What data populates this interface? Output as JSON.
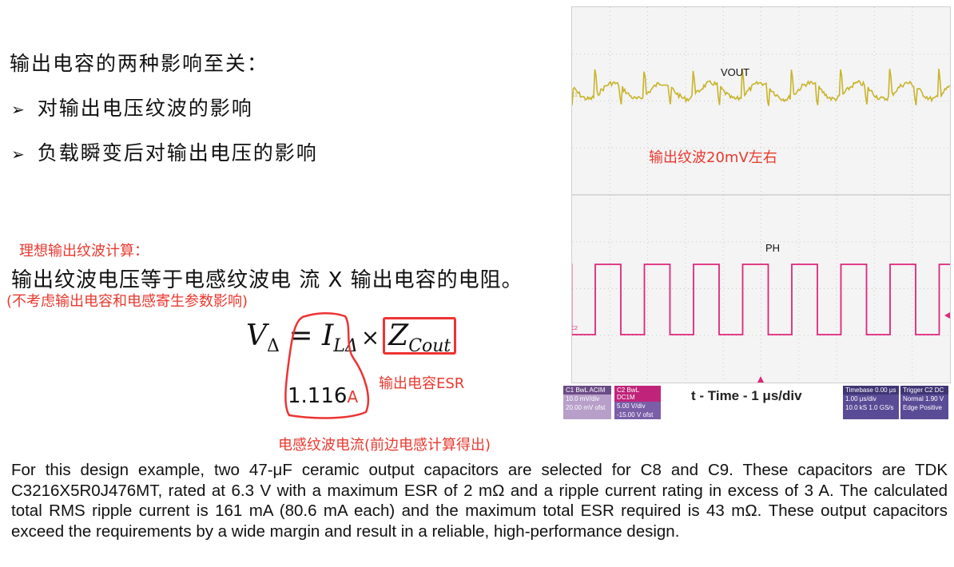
{
  "header": {
    "title": "输出电容的两种影响至关：",
    "bullets": [
      "对输出电压纹波的影响",
      "负载瞬变后对输出电压的影响"
    ]
  },
  "calc": {
    "label": "理想输出纹波计算：",
    "main": "输出纹波电压等于电感纹波电 流 X 输出电容的电阻。",
    "note": "(不考虑输出电容和电感寄生参数影响)",
    "esr_label": "输出电容ESR",
    "current_label": "电感纹波电流(前边电感计算得出)",
    "value": "1.116",
    "unit": "A"
  },
  "formula": {
    "lhs": "V",
    "lhs_sub": "Δ",
    "eq": "=",
    "i": "I",
    "i_sub": "LΔ",
    "times": "×",
    "z": "Z",
    "z_sub": "Cout"
  },
  "scope": {
    "vout_label": "VOUT",
    "ph_label": "PH",
    "ripple_note": "输出纹波20mV左右",
    "time_label": "t - Time - 1 μs/div",
    "c1": {
      "name": "C1",
      "mode": "BwL ACIM",
      "scale": "10.0 mV/div",
      "offset": "20.00 mV ofst"
    },
    "c2": {
      "name": "C2",
      "mode": "BwL DC1M",
      "scale": "5.00 V/div",
      "offset": "-15.00 V ofst"
    },
    "timebase": {
      "title": "Timebase",
      "delay": "0.00 μs",
      "scale": "1.00 μs/div",
      "samples": "10.0 kS",
      "rate": "1.0 GS/s"
    },
    "trigger": {
      "title": "Trigger",
      "ch": "C2 DC",
      "mode": "Normal",
      "level": "1.90 V",
      "type": "Edge",
      "slope": "Positive"
    },
    "colors": {
      "ch1": "#c8b42a",
      "ch2": "#e0257a"
    }
  },
  "paragraph": "For this design example, two 47-μF ceramic output capacitors are selected for C8 and C9. These capacitors are TDK C3216X5R0J476MT, rated at 6.3 V with a maximum ESR of 2 mΩ and a ripple current rating in excess of 3 A. The calculated total RMS ripple current is 161 mA (80.6 mA each) and the maximum total ESR required is 43 mΩ. These output capacitors exceed the requirements by a wide margin and result in a reliable, high-performance design."
}
